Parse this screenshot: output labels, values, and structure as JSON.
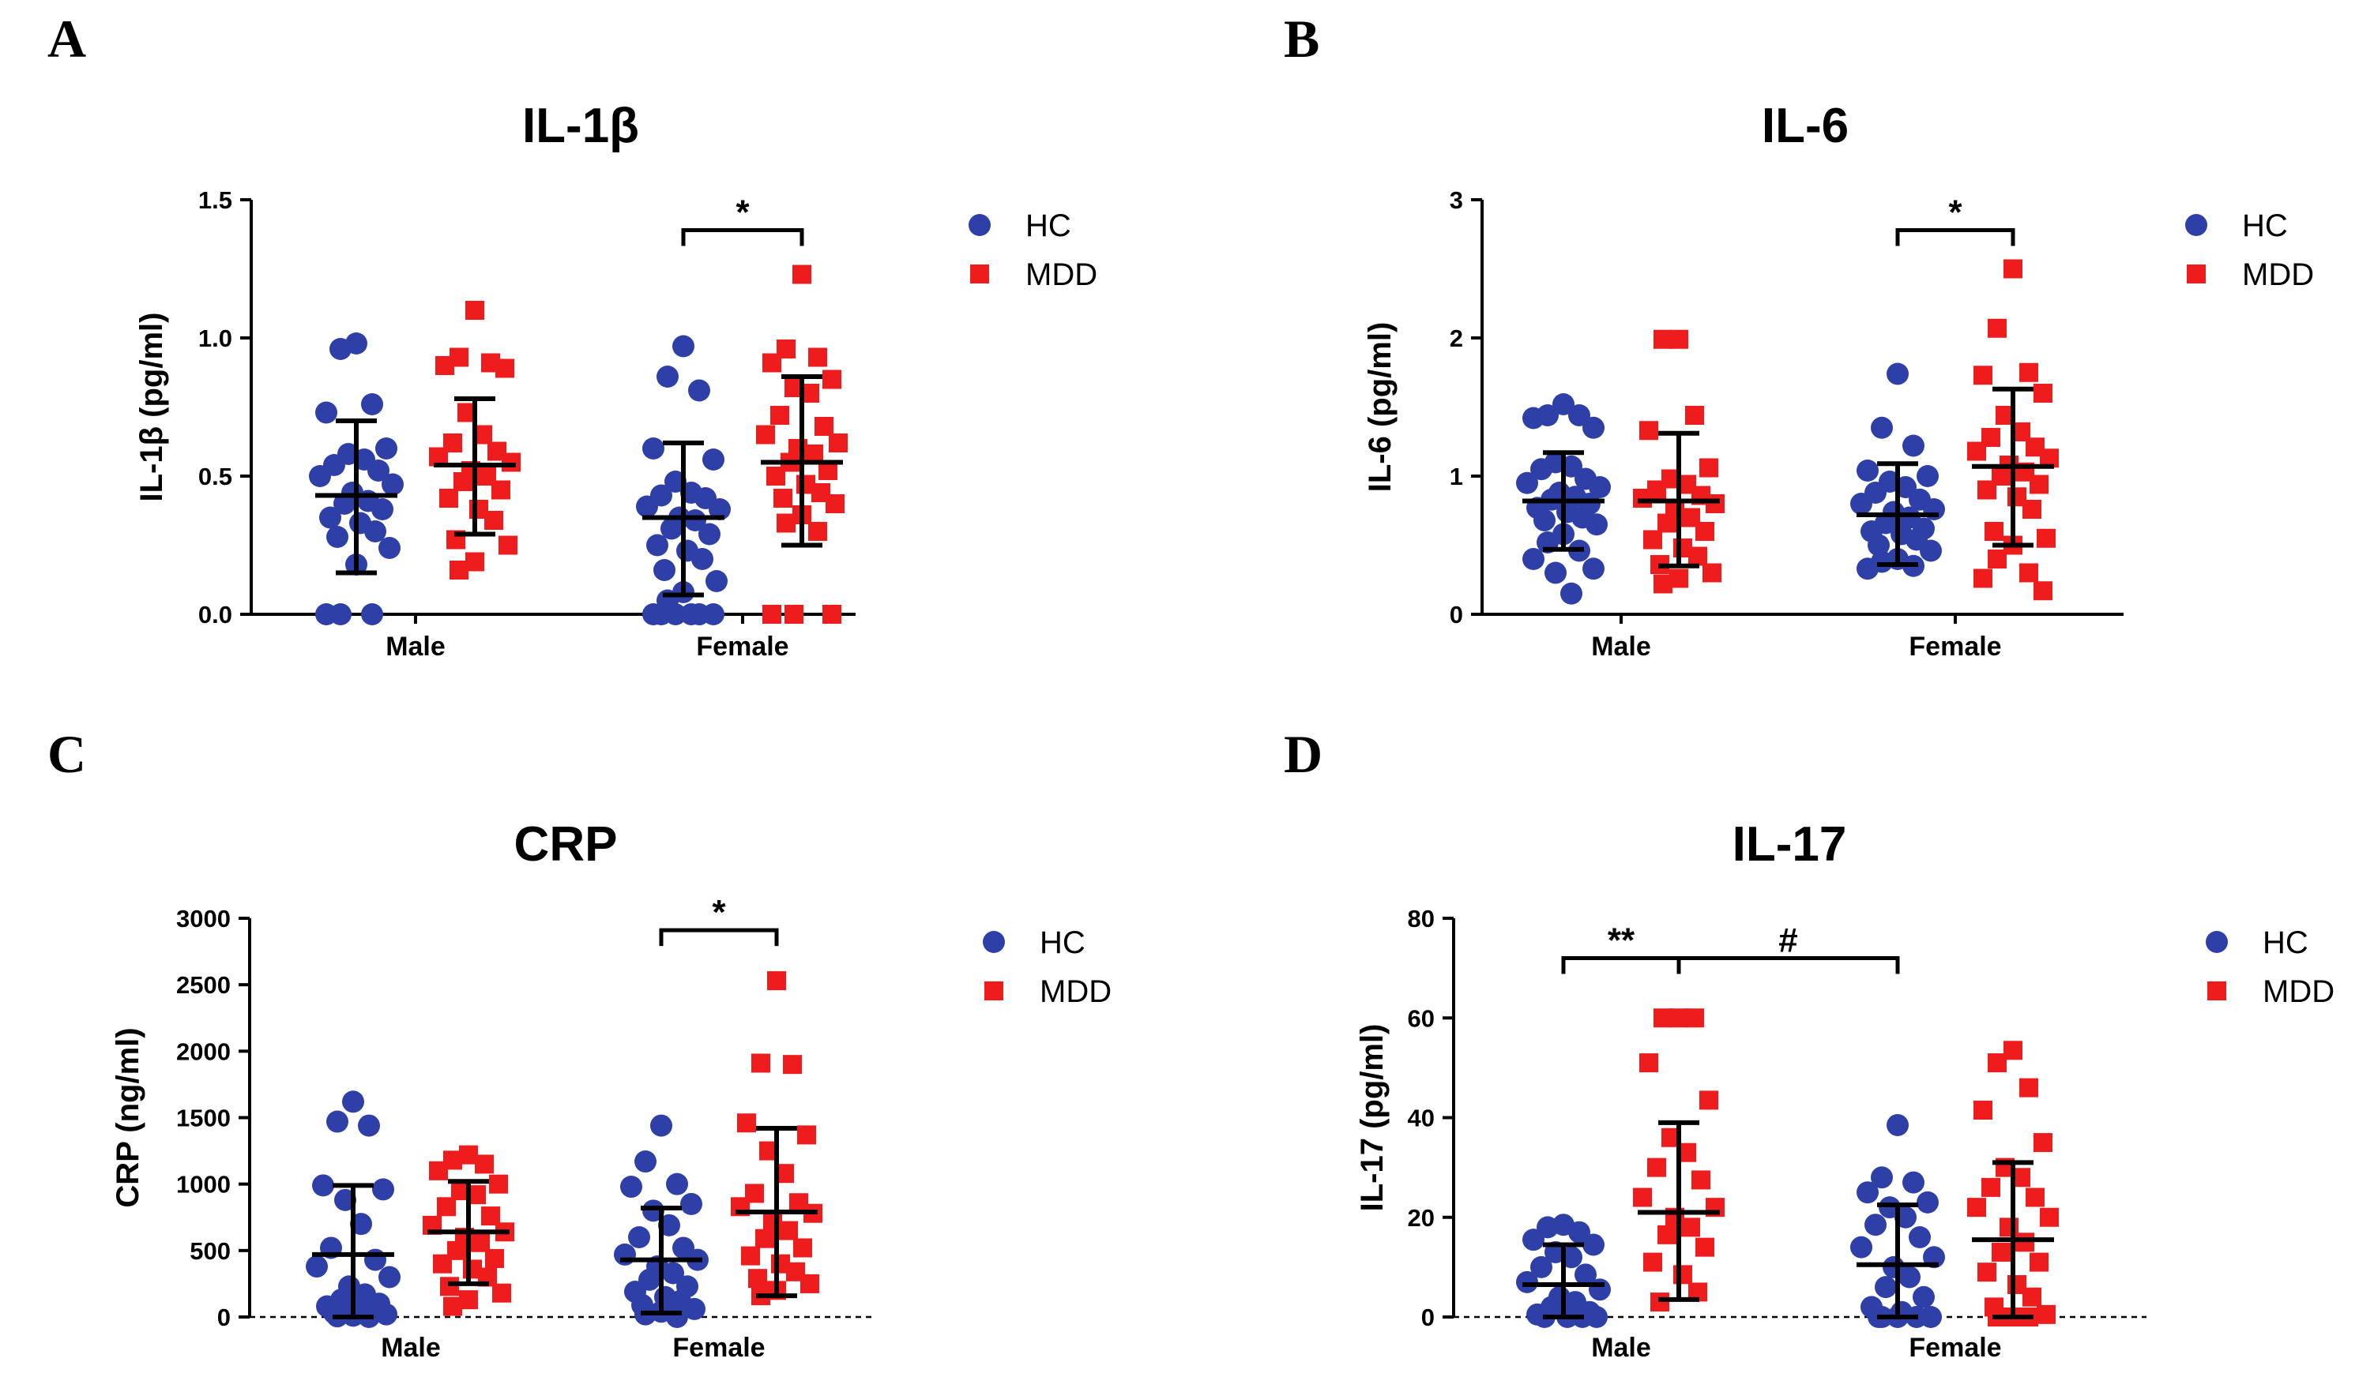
{
  "colors": {
    "hc": "#2f3fa8",
    "mdd": "#ee1c1c"
  },
  "legend": {
    "hc": "HC",
    "mdd": "MDD"
  },
  "chart_data": [
    {
      "panel": "A",
      "type": "scatter",
      "title": "IL-1β",
      "xlabel": "",
      "ylabel": "IL-1β (pg/ml)",
      "categories": [
        "Male",
        "Female"
      ],
      "ylim": [
        0,
        1.5
      ],
      "yticks": [
        0.0,
        0.5,
        1.0,
        1.5
      ],
      "ytick_labels": [
        "0.0",
        "0.5",
        "1.0",
        "1.5"
      ],
      "baseline_dashed": false,
      "series": [
        {
          "name": "HC",
          "groups": [
            {
              "category": "Male",
              "mean": 0.43,
              "sd_low": 0.15,
              "sd_high": 0.7,
              "values": [
                0.98,
                0.96,
                0.76,
                0.73,
                0.6,
                0.58,
                0.56,
                0.54,
                0.52,
                0.5,
                0.47,
                0.44,
                0.41,
                0.4,
                0.38,
                0.35,
                0.33,
                0.3,
                0.28,
                0.24,
                0.18,
                0.0,
                0.0,
                0.0
              ]
            },
            {
              "category": "Female",
              "mean": 0.35,
              "sd_low": 0.07,
              "sd_high": 0.62,
              "values": [
                0.97,
                0.86,
                0.81,
                0.6,
                0.56,
                0.48,
                0.44,
                0.43,
                0.42,
                0.39,
                0.38,
                0.35,
                0.34,
                0.31,
                0.29,
                0.25,
                0.23,
                0.2,
                0.16,
                0.12,
                0.08,
                0.05,
                0.0,
                0.0,
                0.0,
                0.0,
                0.0,
                0.0
              ]
            }
          ]
        },
        {
          "name": "MDD",
          "groups": [
            {
              "category": "Male",
              "mean": 0.54,
              "sd_low": 0.29,
              "sd_high": 0.78,
              "values": [
                1.1,
                0.93,
                0.91,
                0.9,
                0.89,
                0.73,
                0.65,
                0.62,
                0.59,
                0.57,
                0.55,
                0.52,
                0.5,
                0.48,
                0.45,
                0.42,
                0.38,
                0.34,
                0.27,
                0.25,
                0.19,
                0.16
              ]
            },
            {
              "category": "Female",
              "mean": 0.55,
              "sd_low": 0.25,
              "sd_high": 0.86,
              "values": [
                1.23,
                0.96,
                0.93,
                0.91,
                0.85,
                0.82,
                0.8,
                0.72,
                0.68,
                0.65,
                0.62,
                0.6,
                0.58,
                0.55,
                0.52,
                0.5,
                0.47,
                0.44,
                0.42,
                0.4,
                0.36,
                0.33,
                0.3,
                0.0,
                0.0,
                0.0
              ]
            }
          ]
        }
      ],
      "annotations": [
        {
          "text": "*",
          "from": {
            "category": "Female",
            "series": "HC"
          },
          "to": {
            "category": "Female",
            "series": "MDD"
          },
          "y": 1.39
        }
      ]
    },
    {
      "panel": "B",
      "type": "scatter",
      "title": "IL-6",
      "xlabel": "",
      "ylabel": "IL-6 (pg/ml)",
      "categories": [
        "Male",
        "Female"
      ],
      "ylim": [
        0,
        3
      ],
      "yticks": [
        0,
        1,
        2,
        3
      ],
      "ytick_labels": [
        "0",
        "1",
        "2",
        "3"
      ],
      "baseline_dashed": false,
      "series": [
        {
          "name": "HC",
          "groups": [
            {
              "category": "Male",
              "mean": 0.82,
              "sd_low": 0.47,
              "sd_high": 1.17,
              "values": [
                1.52,
                1.44,
                1.44,
                1.42,
                1.35,
                1.1,
                1.07,
                1.05,
                0.98,
                0.95,
                0.92,
                0.88,
                0.85,
                0.83,
                0.8,
                0.77,
                0.74,
                0.7,
                0.68,
                0.65,
                0.58,
                0.52,
                0.46,
                0.4,
                0.33,
                0.3,
                0.15
              ]
            },
            {
              "category": "Female",
              "mean": 0.72,
              "sd_low": 0.36,
              "sd_high": 1.09,
              "values": [
                1.74,
                1.35,
                1.22,
                1.04,
                1.0,
                0.96,
                0.92,
                0.88,
                0.83,
                0.8,
                0.76,
                0.74,
                0.7,
                0.66,
                0.62,
                0.6,
                0.58,
                0.54,
                0.5,
                0.46,
                0.4,
                0.38,
                0.35,
                0.33
              ]
            }
          ]
        },
        {
          "name": "MDD",
          "groups": [
            {
              "category": "Male",
              "mean": 0.82,
              "sd_low": 0.35,
              "sd_high": 1.31,
              "values": [
                1.99,
                1.99,
                1.44,
                1.33,
                1.06,
                0.98,
                0.94,
                0.9,
                0.86,
                0.84,
                0.8,
                0.76,
                0.7,
                0.66,
                0.6,
                0.54,
                0.48,
                0.42,
                0.36,
                0.3,
                0.26,
                0.22
              ]
            },
            {
              "category": "Female",
              "mean": 1.07,
              "sd_low": 0.5,
              "sd_high": 1.63,
              "values": [
                2.5,
                2.07,
                1.75,
                1.73,
                1.6,
                1.44,
                1.32,
                1.28,
                1.21,
                1.18,
                1.13,
                1.08,
                1.03,
                1.0,
                0.94,
                0.9,
                0.85,
                0.76,
                0.6,
                0.55,
                0.5,
                0.4,
                0.3,
                0.26,
                0.17
              ]
            }
          ]
        }
      ],
      "annotations": [
        {
          "text": "*",
          "from": {
            "category": "Female",
            "series": "HC"
          },
          "to": {
            "category": "Female",
            "series": "MDD"
          },
          "y": 2.78
        }
      ]
    },
    {
      "panel": "C",
      "type": "scatter",
      "title": "CRP",
      "xlabel": "",
      "ylabel": "CRP (ng/ml)",
      "categories": [
        "Male",
        "Female"
      ],
      "ylim": [
        0,
        3000
      ],
      "yticks": [
        0,
        500,
        1000,
        1500,
        2000,
        2500,
        3000
      ],
      "ytick_labels": [
        "0",
        "500",
        "1000",
        "1500",
        "2000",
        "2500",
        "3000"
      ],
      "baseline_dashed": true,
      "series": [
        {
          "name": "HC",
          "groups": [
            {
              "category": "Male",
              "mean": 470,
              "sd_low": 0,
              "sd_high": 990,
              "values": [
                1620,
                1470,
                1440,
                990,
                960,
                880,
                700,
                520,
                430,
                380,
                300,
                230,
                170,
                130,
                100,
                80,
                60,
                40,
                30,
                20,
                10,
                5,
                0
              ]
            },
            {
              "category": "Female",
              "mean": 430,
              "sd_low": 30,
              "sd_high": 820,
              "values": [
                1440,
                1170,
                1000,
                980,
                850,
                800,
                690,
                600,
                520,
                470,
                430,
                380,
                330,
                280,
                230,
                190,
                150,
                120,
                90,
                60,
                40,
                20,
                0
              ]
            }
          ]
        },
        {
          "name": "MDD",
          "groups": [
            {
              "category": "Male",
              "mean": 640,
              "sd_low": 250,
              "sd_high": 1020,
              "values": [
                1220,
                1180,
                1150,
                1100,
                1000,
                950,
                920,
                830,
                760,
                690,
                640,
                600,
                560,
                500,
                440,
                400,
                360,
                300,
                230,
                180,
                130,
                80
              ]
            },
            {
              "category": "Female",
              "mean": 790,
              "sd_low": 160,
              "sd_high": 1420,
              "values": [
                2530,
                1910,
                1900,
                1460,
                1370,
                1250,
                1080,
                930,
                860,
                830,
                780,
                720,
                650,
                590,
                520,
                460,
                400,
                340,
                290,
                250,
                200,
                160
              ]
            }
          ]
        }
      ],
      "annotations": [
        {
          "text": "*",
          "from": {
            "category": "Female",
            "series": "HC"
          },
          "to": {
            "category": "Female",
            "series": "MDD"
          },
          "y": 2910
        }
      ]
    },
    {
      "panel": "D",
      "type": "scatter",
      "title": "IL-17",
      "xlabel": "",
      "ylabel": "IL-17 (pg/ml)",
      "categories": [
        "Male",
        "Female"
      ],
      "ylim": [
        0,
        80
      ],
      "yticks": [
        0,
        20,
        40,
        60,
        80
      ],
      "ytick_labels": [
        "0",
        "20",
        "40",
        "60",
        "80"
      ],
      "baseline_dashed": true,
      "series": [
        {
          "name": "HC",
          "groups": [
            {
              "category": "Male",
              "mean": 6.5,
              "sd_low": 0,
              "sd_high": 14.5,
              "values": [
                18.5,
                18.0,
                17.0,
                15.5,
                14.5,
                13.0,
                12.0,
                10.0,
                8.5,
                7.0,
                5.5,
                4.0,
                3.0,
                2.0,
                1.0,
                0.5,
                0,
                0,
                0,
                0
              ]
            },
            {
              "category": "Female",
              "mean": 10.5,
              "sd_low": 0,
              "sd_high": 22.5,
              "values": [
                38.5,
                28.0,
                27.0,
                25.0,
                23.0,
                22.0,
                20.0,
                18.5,
                16.0,
                14.0,
                12.0,
                10.0,
                8.0,
                6.0,
                4.0,
                2.0,
                1.0,
                0,
                0,
                0,
                0,
                0
              ]
            }
          ]
        },
        {
          "name": "MDD",
          "groups": [
            {
              "category": "Male",
              "mean": 21.0,
              "sd_low": 3.5,
              "sd_high": 39.0,
              "values": [
                60.0,
                60.0,
                60.0,
                51.0,
                43.5,
                36.0,
                33.0,
                30.0,
                27.5,
                24.0,
                22.0,
                20.0,
                18.0,
                16.5,
                14.0,
                11.0,
                8.5,
                5.0,
                3.0
              ]
            },
            {
              "category": "Female",
              "mean": 15.5,
              "sd_low": 0,
              "sd_high": 31.0,
              "values": [
                53.5,
                51.0,
                46.0,
                41.5,
                35.0,
                30.0,
                28.0,
                26.0,
                24.0,
                22.0,
                20.0,
                18.0,
                15.0,
                13.0,
                11.0,
                9.0,
                6.5,
                4.0,
                2.0,
                0.5,
                0,
                0,
                0
              ]
            }
          ]
        }
      ],
      "annotations": [
        {
          "text": "**",
          "from": {
            "category": "Male",
            "series": "HC"
          },
          "to": {
            "category": "Male",
            "series": "MDD"
          },
          "y": 72
        },
        {
          "text": "#",
          "from": {
            "category": "Male",
            "series": "MDD"
          },
          "to": {
            "category": "Female",
            "series": "HC"
          },
          "y": 72
        }
      ]
    }
  ]
}
